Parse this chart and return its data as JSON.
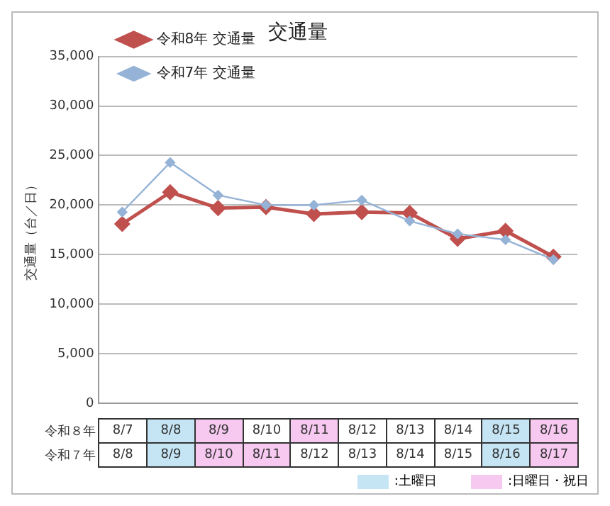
{
  "chart_data": {
    "type": "line",
    "title": "交通量",
    "ylabel": "交通量（台／日）",
    "categories": [
      "8/7",
      "8/8",
      "8/9",
      "8/10",
      "8/11",
      "8/12",
      "8/13",
      "8/14",
      "8/15",
      "8/16"
    ],
    "series": [
      {
        "name": "令和8年 交通量",
        "color": "#c0504d",
        "marker": "diamond",
        "values": [
          18100,
          21300,
          19700,
          19800,
          19100,
          19300,
          19200,
          16600,
          17400,
          14800
        ]
      },
      {
        "name": "令和7年 交通量",
        "color": "#95b3d7",
        "marker": "diamond",
        "values": [
          19300,
          24300,
          21000,
          20000,
          20000,
          20500,
          18400,
          17100,
          16500,
          14500
        ]
      }
    ],
    "ylim": [
      0,
      35000
    ],
    "yticks": [
      0,
      {
        "value": 5000,
        "label": "5,000"
      },
      {
        "value": 10000,
        "label": "10,000"
      },
      {
        "value": 15000,
        "label": "15,000"
      },
      {
        "value": 20000,
        "label": "20,000"
      },
      {
        "value": 25000,
        "label": "25,000"
      },
      {
        "value": 30000,
        "label": "30,000"
      },
      {
        "value": 35000,
        "label": "35,000"
      }
    ],
    "grid": "y",
    "legend": "top left",
    "tick_labels": "y",
    "annotations": [
      "令和８年",
      "令和７年",
      "8/8",
      "8/9",
      "8/10",
      "8/11",
      "8/12",
      "8/13",
      "8/14",
      "8/15",
      "8/16",
      "8/17",
      ":土曜日",
      ":日曜日・祝日"
    ]
  }
}
